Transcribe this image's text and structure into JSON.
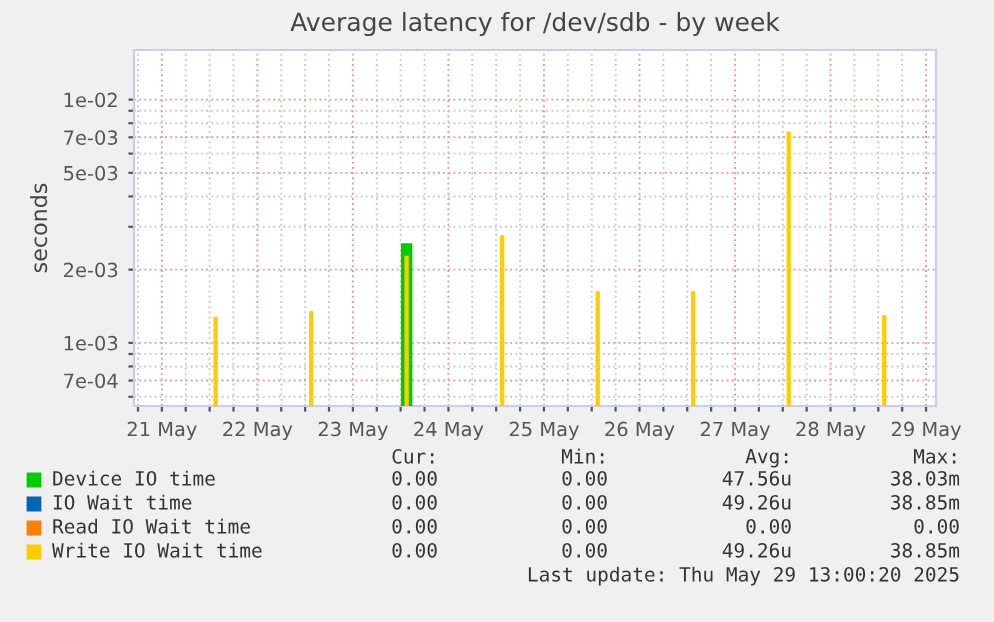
{
  "chart_data": {
    "type": "bar",
    "title": "Average latency for /dev/sdb - by week",
    "ylabel": "seconds",
    "log": "y",
    "grid": true,
    "legend": "bottom",
    "x": [
      "2025-05-22T01:30",
      "2025-05-23T01:30",
      "2025-05-24T01:30",
      "2025-05-25T01:30",
      "2025-05-26T01:30",
      "2025-05-27T01:30",
      "2025-05-28T01:30",
      "2025-05-29T01:30"
    ],
    "series": [
      {
        "name": "Device IO time",
        "color": "#00cc00",
        "values": [
          null,
          null,
          0.00257,
          null,
          null,
          null,
          null,
          null
        ]
      },
      {
        "name": "IO Wait time",
        "color": "#0066b3",
        "values": [
          null,
          null,
          null,
          null,
          null,
          null,
          null,
          null
        ]
      },
      {
        "name": "Read IO Wait time",
        "color": "#ff8000",
        "values": [
          null,
          null,
          null,
          null,
          null,
          null,
          null,
          null
        ]
      },
      {
        "name": "Write IO Wait time",
        "color": "#ffcc00",
        "values": [
          0.00128,
          0.00135,
          0.00228,
          0.00277,
          0.00163,
          0.00163,
          0.0074,
          0.0013
        ]
      }
    ],
    "xlim": [
      "2025-05-21T05:00",
      "2025-05-29T14:30"
    ],
    "xticks": [
      {
        "value": "2025-05-21T12:00",
        "label": "21 May"
      },
      {
        "value": "2025-05-22T12:00",
        "label": "22 May"
      },
      {
        "value": "2025-05-23T12:00",
        "label": "23 May"
      },
      {
        "value": "2025-05-24T12:00",
        "label": "24 May"
      },
      {
        "value": "2025-05-25T12:00",
        "label": "25 May"
      },
      {
        "value": "2025-05-26T12:00",
        "label": "26 May"
      },
      {
        "value": "2025-05-27T12:00",
        "label": "27 May"
      },
      {
        "value": "2025-05-28T12:00",
        "label": "28 May"
      },
      {
        "value": "2025-05-29T12:00",
        "label": "29 May"
      },
      {
        "value": "2025-05-21T06:00",
        "label": null
      },
      {
        "value": "2025-05-21T18:00",
        "label": null
      },
      {
        "value": "2025-05-22T00:00",
        "label": null
      },
      {
        "value": "2025-05-22T06:00",
        "label": null
      },
      {
        "value": "2025-05-22T18:00",
        "label": null
      },
      {
        "value": "2025-05-23T00:00",
        "label": null
      },
      {
        "value": "2025-05-23T06:00",
        "label": null
      },
      {
        "value": "2025-05-23T18:00",
        "label": null
      },
      {
        "value": "2025-05-24T00:00",
        "label": null
      },
      {
        "value": "2025-05-24T06:00",
        "label": null
      },
      {
        "value": "2025-05-24T18:00",
        "label": null
      },
      {
        "value": "2025-05-25T00:00",
        "label": null
      },
      {
        "value": "2025-05-25T06:00",
        "label": null
      },
      {
        "value": "2025-05-25T18:00",
        "label": null
      },
      {
        "value": "2025-05-26T00:00",
        "label": null
      },
      {
        "value": "2025-05-26T06:00",
        "label": null
      },
      {
        "value": "2025-05-26T18:00",
        "label": null
      },
      {
        "value": "2025-05-27T00:00",
        "label": null
      },
      {
        "value": "2025-05-27T06:00",
        "label": null
      },
      {
        "value": "2025-05-27T18:00",
        "label": null
      },
      {
        "value": "2025-05-28T00:00",
        "label": null
      },
      {
        "value": "2025-05-28T06:00",
        "label": null
      },
      {
        "value": "2025-05-28T18:00",
        "label": null
      },
      {
        "value": "2025-05-29T00:00",
        "label": null
      },
      {
        "value": "2025-05-29T06:00",
        "label": null
      }
    ],
    "ylim": [
      0.00055,
      0.016
    ],
    "yticks": [
      {
        "value": 0.01,
        "label": "1e-02"
      },
      {
        "value": 0.007,
        "label": "7e-03"
      },
      {
        "value": 0.005,
        "label": "5e-03"
      },
      {
        "value": 0.002,
        "label": "2e-03"
      },
      {
        "value": 0.001,
        "label": "1e-03"
      },
      {
        "value": 0.0007,
        "label": "7e-04"
      },
      {
        "value": 0.009,
        "label": null
      },
      {
        "value": 0.008,
        "label": null
      },
      {
        "value": 0.006,
        "label": null
      },
      {
        "value": 0.004,
        "label": null
      },
      {
        "value": 0.003,
        "label": null
      },
      {
        "value": 0.0009,
        "label": null
      },
      {
        "value": 0.0008,
        "label": null
      },
      {
        "value": 0.0006,
        "label": null
      }
    ],
    "annotations": [
      "Cur:",
      "Min:",
      "Avg:",
      "Max:",
      "0.00",
      "0.00",
      "47.56u",
      "38.03m",
      "0.00",
      "0.00",
      "49.26u",
      "38.85m",
      "0.00",
      "0.00",
      "0.00",
      "0.00",
      "0.00",
      "0.00",
      "49.26u",
      "38.85m",
      "Last update: Thu May 29 13:00:20 2025"
    ]
  }
}
